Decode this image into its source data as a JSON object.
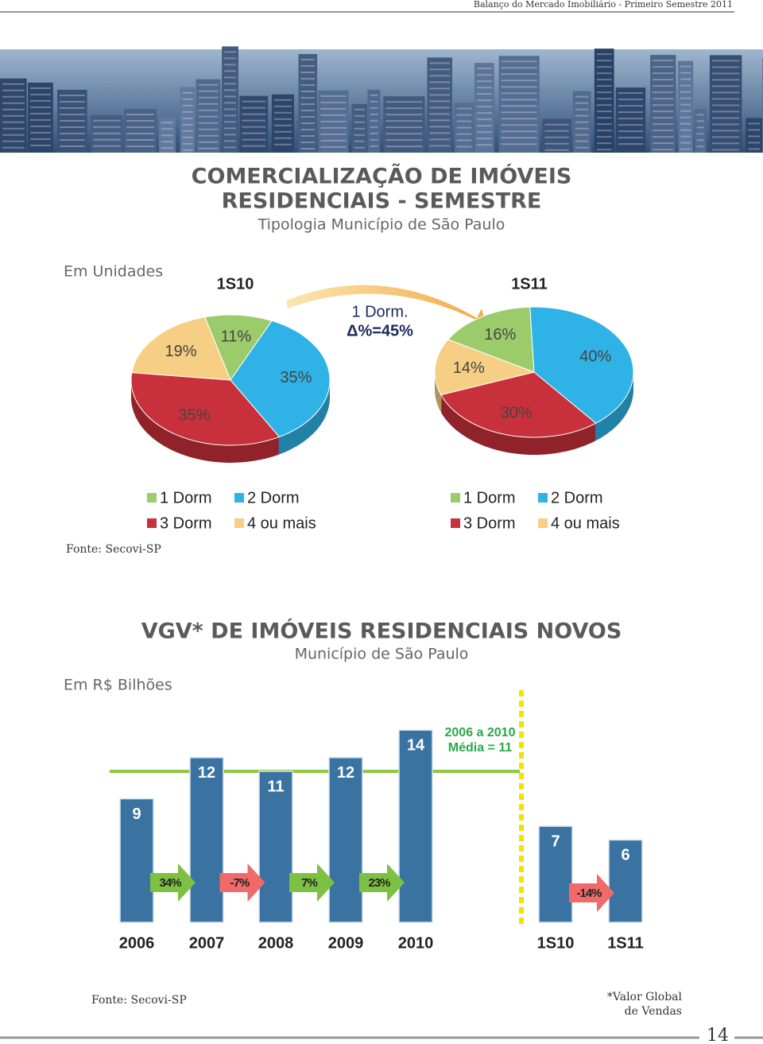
{
  "header": {
    "running_title": "Balanço do Mercado Imobiliário - Primeiro Semestre 2011",
    "page_number": "14"
  },
  "sales": {
    "title_line1": "COMERCIALIZAÇÃO DE IMÓVEIS",
    "title_line2": "RESIDENCIAIS - SEMESTRE",
    "subtitle": "Tipologia Município de São Paulo",
    "unit": "Em Unidades",
    "annotation_line1": "1 Dorm.",
    "annotation_line2": "Δ%=45%",
    "source": "Fonte: Secovi-SP"
  },
  "vgv": {
    "title": "VGV* DE IMÓVEIS RESIDENCIAIS NOVOS",
    "subtitle": "Município de São Paulo",
    "unit": "Em R$ Bilhões",
    "source": "Fonte: Secovi-SP",
    "footnote_line1": "*Valor Global",
    "footnote_line2": "de Vendas"
  },
  "chart_data": [
    {
      "type": "pie",
      "title": "1S10",
      "categories": [
        "1 Dorm",
        "2 Dorm",
        "3 Dorm",
        "4 ou mais"
      ],
      "values": [
        11,
        35,
        35,
        19
      ],
      "value_labels": [
        "11%",
        "35%",
        "35%",
        "19%"
      ],
      "colors": [
        "#9ccb6b",
        "#2fb3e6",
        "#c8313b",
        "#f6cf84"
      ]
    },
    {
      "type": "pie",
      "title": "1S11",
      "categories": [
        "1 Dorm",
        "2 Dorm",
        "3 Dorm",
        "4 ou mais"
      ],
      "values": [
        16,
        40,
        30,
        14
      ],
      "value_labels": [
        "16%",
        "40%",
        "30%",
        "14%"
      ],
      "colors": [
        "#9ccb6b",
        "#2fb3e6",
        "#c8313b",
        "#f6cf84"
      ]
    },
    {
      "type": "bar",
      "categories": [
        "2006",
        "2007",
        "2008",
        "2009",
        "2010",
        "1S10",
        "1S11"
      ],
      "values": [
        9,
        12,
        11,
        12,
        14,
        7,
        6
      ],
      "color": "#3a72a2",
      "ylim": [
        0,
        15
      ],
      "average": {
        "value": 11,
        "label_line1": "2006 a 2010",
        "label_line2": "Média = 11",
        "color": "#8dc63f"
      },
      "growth": {
        "values": [
          34,
          -7,
          7,
          23,
          -14
        ],
        "value_labels": [
          "34%",
          "-7%",
          "7%",
          "23%",
          "-14%"
        ],
        "up_color": "#7dc142",
        "down_color": "#f06a6a"
      }
    }
  ]
}
